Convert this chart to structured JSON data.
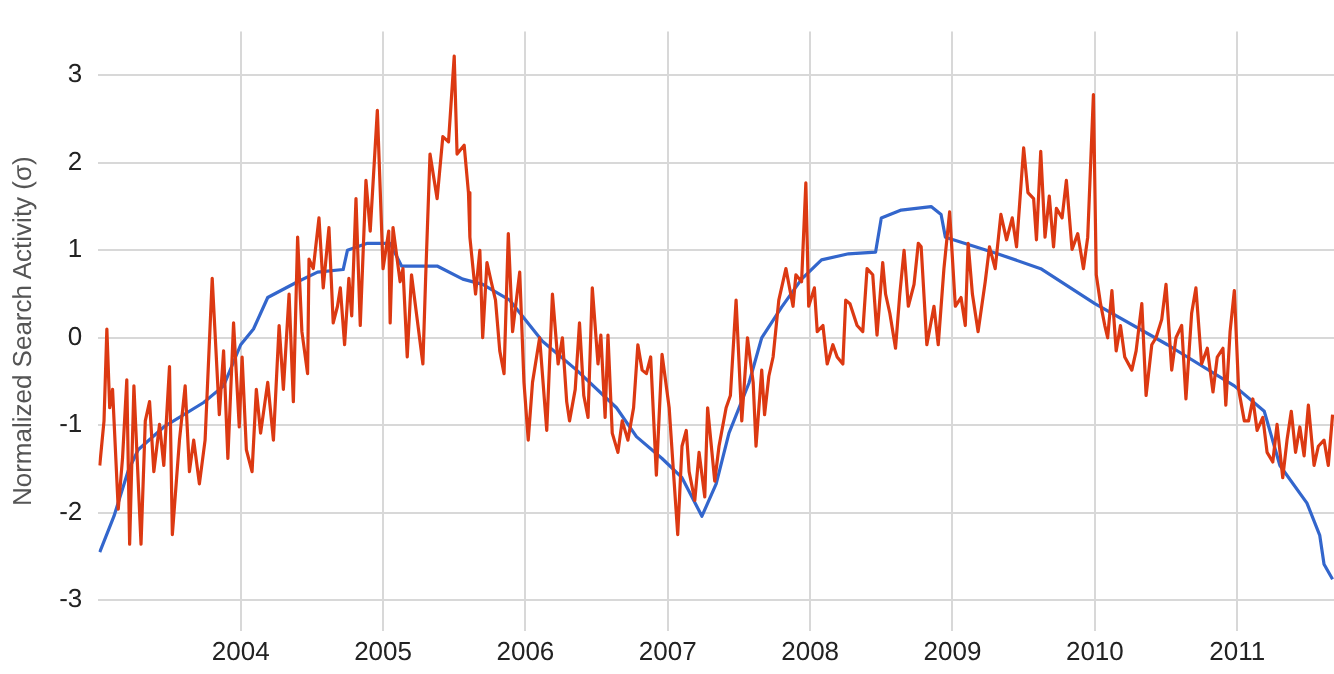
{
  "chart_data": {
    "type": "line",
    "ylabel": "Normalized Search Activity (σ)",
    "xlim": [
      2003,
      2011.68
    ],
    "ylim": [
      -3.35,
      3.5
    ],
    "xticks": [
      2004,
      2005,
      2006,
      2007,
      2008,
      2009,
      2010,
      2011
    ],
    "yticks": [
      -3,
      -2,
      -1,
      0,
      1,
      2,
      3
    ],
    "grid": true,
    "marker": "none",
    "line_style": "solid",
    "series": [
      {
        "color": "#dc3912",
        "x": [
          2003.01,
          2003.04,
          2003.06,
          2003.08,
          2003.1,
          2003.14,
          2003.17,
          2003.2,
          2003.22,
          2003.25,
          2003.3,
          2003.33,
          2003.36,
          2003.39,
          2003.43,
          2003.46,
          2003.5,
          2003.52,
          2003.57,
          2003.61,
          2003.64,
          2003.67,
          2003.71,
          2003.75,
          2003.8,
          2003.85,
          2003.88,
          2003.91,
          2003.95,
          2003.99,
          2004.01,
          2004.04,
          2004.08,
          2004.11,
          2004.14,
          2004.19,
          2004.23,
          2004.27,
          2004.3,
          2004.34,
          2004.37,
          2004.4,
          2004.43,
          2004.47,
          2004.48,
          2004.51,
          2004.55,
          2004.58,
          2004.62,
          2004.65,
          2004.68,
          2004.7,
          2004.73,
          2004.76,
          2004.78,
          2004.81,
          2004.84,
          2004.88,
          2004.91,
          2004.96,
          2005,
          2005.04,
          2005.05,
          2005.07,
          2005.12,
          2005.14,
          2005.17,
          2005.2,
          2005.24,
          2005.28,
          2005.3,
          2005.33,
          2005.38,
          2005.42,
          2005.46,
          2005.5,
          2005.52,
          2005.57,
          2005.6,
          2005.61,
          2005.65,
          2005.68,
          2005.7,
          2005.73,
          2005.76,
          2005.79,
          2005.82,
          2005.85,
          2005.88,
          2005.91,
          2005.96,
          2005.99,
          2006.02,
          2006.05,
          2006.1,
          2006.15,
          2006.19,
          2006.23,
          2006.26,
          2006.29,
          2006.31,
          2006.35,
          2006.38,
          2006.41,
          2006.44,
          2006.47,
          2006.51,
          2006.53,
          2006.56,
          2006.58,
          2006.61,
          2006.65,
          2006.68,
          2006.72,
          2006.76,
          2006.79,
          2006.82,
          2006.85,
          2006.88,
          2006.92,
          2006.96,
          2007.01,
          2007.04,
          2007.07,
          2007.1,
          2007.13,
          2007.15,
          2007.19,
          2007.22,
          2007.26,
          2007.28,
          2007.33,
          2007.36,
          2007.41,
          2007.44,
          2007.48,
          2007.52,
          2007.56,
          2007.6,
          2007.62,
          2007.66,
          2007.68,
          2007.71,
          2007.74,
          2007.78,
          2007.83,
          2007.88,
          2007.9,
          2007.94,
          2007.97,
          2007.99,
          2008.03,
          2008.05,
          2008.09,
          2008.12,
          2008.16,
          2008.19,
          2008.23,
          2008.25,
          2008.28,
          2008.33,
          2008.37,
          2008.4,
          2008.44,
          2008.47,
          2008.51,
          2008.53,
          2008.56,
          2008.6,
          2008.63,
          2008.66,
          2008.69,
          2008.73,
          2008.76,
          2008.78,
          2008.82,
          2008.87,
          2008.9,
          2008.94,
          2008.98,
          2009.02,
          2009.06,
          2009.09,
          2009.11,
          2009.14,
          2009.18,
          2009.23,
          2009.26,
          2009.3,
          2009.34,
          2009.38,
          2009.42,
          2009.45,
          2009.5,
          2009.53,
          2009.57,
          2009.59,
          2009.62,
          2009.65,
          2009.68,
          2009.71,
          2009.73,
          2009.77,
          2009.8,
          2009.84,
          2009.88,
          2009.92,
          2009.95,
          2009.99,
          2010.01,
          2010.04,
          2010.07,
          2010.09,
          2010.12,
          2010.15,
          2010.18,
          2010.21,
          2010.26,
          2010.29,
          2010.33,
          2010.36,
          2010.4,
          2010.43,
          2010.47,
          2010.5,
          2010.54,
          2010.57,
          2010.61,
          2010.64,
          2010.68,
          2010.71,
          2010.75,
          2010.79,
          2010.83,
          2010.86,
          2010.9,
          2010.92,
          2010.95,
          2010.98,
          2011.01,
          2011.05,
          2011.08,
          2011.11,
          2011.14,
          2011.18,
          2011.21,
          2011.25,
          2011.28,
          2011.32,
          2011.35,
          2011.38,
          2011.41,
          2011.44,
          2011.47,
          2011.5,
          2011.54,
          2011.57,
          2011.61,
          2011.64,
          2011.67
        ],
        "values": [
          -1.46,
          -0.95,
          0.1,
          -0.8,
          -0.59,
          -1.96,
          -1.38,
          -0.48,
          -2.36,
          -0.55,
          -2.36,
          -0.95,
          -0.73,
          -1.53,
          -0.99,
          -1.46,
          -0.33,
          -2.25,
          -1.17,
          -0.55,
          -1.53,
          -1.17,
          -1.67,
          -1.17,
          0.68,
          -0.88,
          -0.15,
          -1.38,
          0.17,
          -1.02,
          -0.22,
          -1.28,
          -1.53,
          -0.59,
          -1.09,
          -0.51,
          -1.17,
          0.14,
          -0.59,
          0.5,
          -0.73,
          1.15,
          0.07,
          -0.41,
          0.9,
          0.79,
          1.37,
          0.57,
          1.26,
          0.17,
          0.36,
          0.57,
          -0.08,
          0.68,
          0.25,
          1.59,
          0.14,
          1.8,
          1.22,
          2.6,
          0.79,
          1.22,
          0.17,
          1.26,
          0.64,
          0.79,
          -0.22,
          0.72,
          0.21,
          -0.3,
          0.72,
          2.1,
          1.59,
          2.3,
          2.24,
          3.22,
          2.1,
          2.2,
          1.66,
          1.15,
          0.5,
          1.0,
          0.0,
          0.86,
          0.64,
          0.43,
          -0.15,
          -0.41,
          1.19,
          0.07,
          0.75,
          -0.51,
          -1.17,
          -0.51,
          0.0,
          -1.06,
          0.5,
          -0.3,
          0.0,
          -0.73,
          -0.95,
          -0.59,
          0.17,
          -0.66,
          -0.91,
          0.57,
          -0.3,
          0.03,
          -0.91,
          0.03,
          -1.09,
          -1.31,
          -0.95,
          -1.17,
          -0.8,
          -0.08,
          -0.37,
          -0.41,
          -0.22,
          -1.57,
          -0.19,
          -0.8,
          -1.53,
          -2.25,
          -1.24,
          -1.06,
          -1.53,
          -1.86,
          -1.31,
          -1.82,
          -0.8,
          -1.64,
          -1.24,
          -0.8,
          -0.66,
          0.43,
          -0.95,
          0.0,
          -0.51,
          -1.24,
          -0.37,
          -0.88,
          -0.44,
          -0.22,
          0.43,
          0.79,
          0.36,
          0.72,
          0.64,
          1.77,
          0.36,
          0.57,
          0.07,
          0.14,
          -0.3,
          -0.08,
          -0.22,
          -0.3,
          0.43,
          0.39,
          0.14,
          0.07,
          0.79,
          0.72,
          0.03,
          0.86,
          0.5,
          0.28,
          -0.12,
          0.5,
          1.0,
          0.36,
          0.61,
          1.08,
          1.04,
          -0.08,
          0.36,
          -0.08,
          0.79,
          1.44,
          0.36,
          0.46,
          0.14,
          1.08,
          0.5,
          0.07,
          0.64,
          1.04,
          0.79,
          1.41,
          1.12,
          1.37,
          1.04,
          2.17,
          1.66,
          1.59,
          1.12,
          2.13,
          1.15,
          1.62,
          1.04,
          1.48,
          1.37,
          1.8,
          1.01,
          1.19,
          0.79,
          1.15,
          2.78,
          0.72,
          0.39,
          0.14,
          0.0,
          0.54,
          -0.15,
          0.14,
          -0.22,
          -0.37,
          -0.15,
          0.39,
          -0.66,
          -0.08,
          0.0,
          0.21,
          0.61,
          -0.37,
          0.0,
          0.14,
          -0.7,
          0.28,
          0.57,
          -0.3,
          -0.12,
          -0.62,
          -0.22,
          -0.12,
          -0.77,
          0.07,
          0.54,
          -0.59,
          -0.95,
          -0.95,
          -0.7,
          -1.06,
          -0.91,
          -1.31,
          -1.42,
          -0.99,
          -1.6,
          -1.17,
          -0.84,
          -1.31,
          -1.02,
          -1.35,
          -0.77,
          -1.46,
          -1.24,
          -1.17,
          -1.46,
          -0.88
        ]
      },
      {
        "color": "#3366cc",
        "x": [
          2003.01,
          2003.11,
          2003.21,
          2003.28,
          2003.46,
          2003.74,
          2003.88,
          2004.0,
          2004.09,
          2004.19,
          2004.4,
          2004.54,
          2004.72,
          2004.75,
          2004.89,
          2005.05,
          2005.13,
          2005.38,
          2005.56,
          2005.7,
          2005.89,
          2006.12,
          2006.36,
          2006.64,
          2006.78,
          2006.96,
          2007.1,
          2007.24,
          2007.34,
          2007.43,
          2007.57,
          2007.66,
          2007.8,
          2007.94,
          2008.08,
          2008.27,
          2008.46,
          2008.5,
          2008.64,
          2008.85,
          2008.92,
          2008.95,
          2009.3,
          2009.62,
          2010.0,
          2010.51,
          2010.98,
          2011.19,
          2011.3,
          2011.49,
          2011.58,
          2011.61,
          2011.67
        ],
        "values": [
          -2.45,
          -2.04,
          -1.52,
          -1.28,
          -1.02,
          -0.74,
          -0.55,
          -0.08,
          0.1,
          0.46,
          0.64,
          0.75,
          0.78,
          1.0,
          1.08,
          1.08,
          0.82,
          0.82,
          0.67,
          0.61,
          0.43,
          -0.04,
          -0.37,
          -0.8,
          -1.13,
          -1.38,
          -1.6,
          -2.04,
          -1.67,
          -1.09,
          -0.52,
          0.0,
          0.35,
          0.67,
          0.89,
          0.96,
          0.98,
          1.37,
          1.46,
          1.5,
          1.41,
          1.15,
          0.97,
          0.79,
          0.39,
          -0.08,
          -0.55,
          -0.84,
          -1.46,
          -1.89,
          -2.26,
          -2.59,
          -2.76
        ]
      }
    ]
  }
}
